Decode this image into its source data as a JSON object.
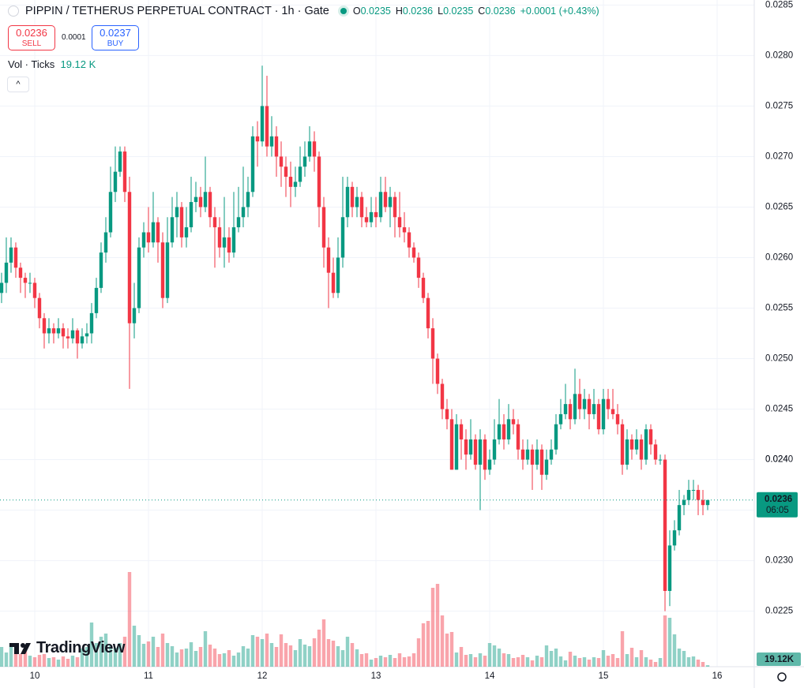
{
  "header": {
    "symbol": "PIPPIN / TETHERUS PERPETUAL CONTRACT · 1h · Gate",
    "ohlc": [
      [
        "O",
        "0.0235"
      ],
      [
        "H",
        "0.0236"
      ],
      [
        "L",
        "0.0235"
      ],
      [
        "C",
        "0.0236"
      ]
    ],
    "change": "+0.0001 (+0.43%)"
  },
  "trade": {
    "sell_price": "0.0236",
    "sell_label": "SELL",
    "spread": "0.0001",
    "buy_price": "0.0237",
    "buy_label": "BUY"
  },
  "indicator": {
    "name": "Vol · Ticks",
    "value": "19.12 K"
  },
  "brand": "TradingView",
  "chart_data": {
    "type": "candlestick",
    "up_color": "#089981",
    "down_color": "#f23645",
    "grid": true,
    "ylim": [
      0.02195,
      0.02855
    ],
    "yticks": [
      0.0225,
      {
        "value": 0.023,
        "label": "0.0230"
      },
      0.0235,
      0.024,
      {
        "value": 0.024,
        "label": "0.0240"
      },
      0.0245,
      {
        "value": 0.025,
        "label": "0.0250"
      },
      0.0255,
      {
        "value": 0.026,
        "label": "0.0260"
      },
      0.0265,
      {
        "value": 0.027,
        "label": "0.0270"
      },
      0.0275,
      {
        "value": 0.028,
        "label": "0.0280"
      },
      0.0285
    ],
    "xlim": [
      -0.33,
      158.83
    ],
    "xticks": [
      {
        "value": 7,
        "label": "10"
      },
      {
        "value": 31,
        "label": "11"
      },
      {
        "value": 55,
        "label": "12"
      },
      {
        "value": 79,
        "label": "13"
      },
      {
        "value": 103,
        "label": "14"
      },
      {
        "value": 127,
        "label": "15"
      },
      {
        "value": 151,
        "label": "16"
      }
    ],
    "last_price": 0.0236,
    "countdown": "06:05",
    "volume_label": "19.12K",
    "volume_ylim": [
      0,
      1500
    ],
    "open": [
      0.02565,
      0.02575,
      0.02595,
      0.0261,
      0.0259,
      0.0258,
      0.02575,
      0.02575,
      0.0256,
      0.0254,
      0.02525,
      0.0253,
      0.02525,
      0.0253,
      0.02522,
      0.0252,
      0.02528,
      0.02515,
      0.02522,
      0.02525,
      0.02545,
      0.0257,
      0.02605,
      0.02625,
      0.02665,
      0.02685,
      0.02705,
      0.02665,
      0.02535,
      0.0255,
      0.0261,
      0.02625,
      0.02615,
      0.02635,
      0.02615,
      0.0256,
      0.02615,
      0.0264,
      0.0265,
      0.0262,
      0.0263,
      0.02655,
      0.0266,
      0.0265,
      0.02665,
      0.0264,
      0.0263,
      0.0261,
      0.0262,
      0.02605,
      0.0263,
      0.0264,
      0.0265,
      0.02665,
      0.0272,
      0.02715,
      0.0275,
      0.0271,
      0.0272,
      0.027,
      0.0269,
      0.0268,
      0.0267,
      0.02675,
      0.0269,
      0.027,
      0.02715,
      0.027,
      0.0265,
      0.0261,
      0.02585,
      0.02565,
      0.026,
      0.0264,
      0.0267,
      0.0265,
      0.0266,
      0.0264,
      0.02635,
      0.02645,
      0.0264,
      0.02665,
      0.0265,
      0.0266,
      0.0264,
      0.0263,
      0.02625,
      0.0261,
      0.026,
      0.0258,
      0.0256,
      0.0253,
      0.025,
      0.02475,
      0.0245,
      0.0244,
      0.0239,
      0.02435,
      0.0242,
      0.02405,
      0.0242,
      0.02395,
      0.0242,
      0.0239,
      0.024,
      0.0242,
      0.02435,
      0.0242,
      0.0244,
      0.02435,
      0.0241,
      0.024,
      0.0241,
      0.02395,
      0.0241,
      0.02385,
      0.024,
      0.0241,
      0.02435,
      0.02445,
      0.02455,
      0.0244,
      0.02465,
      0.0245,
      0.0246,
      0.02445,
      0.02455,
      0.0243,
      0.0246,
      0.0245,
      0.02445,
      0.02435,
      0.02395,
      0.0242,
      0.0241,
      0.0242,
      0.024,
      0.0243,
      0.02415,
      0.024,
      0.024,
      0.0227,
      0.02315,
      0.0233,
      0.02355,
      0.0236,
      0.0237,
      0.0237,
      0.0236,
      0.02355
    ],
    "high": [
      0.02585,
      0.0262,
      0.0262,
      0.02615,
      0.02595,
      0.02585,
      0.02585,
      0.0258,
      0.02565,
      0.02545,
      0.0254,
      0.02535,
      0.0254,
      0.02535,
      0.0253,
      0.0254,
      0.0253,
      0.0253,
      0.02535,
      0.02555,
      0.0258,
      0.02615,
      0.0264,
      0.0269,
      0.0271,
      0.0271,
      0.0271,
      0.0268,
      0.02575,
      0.0262,
      0.02635,
      0.0265,
      0.02665,
      0.0264,
      0.02625,
      0.0264,
      0.0266,
      0.02665,
      0.02655,
      0.0265,
      0.0268,
      0.02675,
      0.0267,
      0.027,
      0.0267,
      0.0265,
      0.0264,
      0.0266,
      0.0263,
      0.02665,
      0.0267,
      0.0269,
      0.0268,
      0.0273,
      0.02735,
      0.0279,
      0.0278,
      0.0274,
      0.0273,
      0.02715,
      0.027,
      0.02695,
      0.0269,
      0.0271,
      0.02715,
      0.0273,
      0.02725,
      0.02705,
      0.0266,
      0.0262,
      0.026,
      0.0262,
      0.0268,
      0.0268,
      0.02675,
      0.0267,
      0.02665,
      0.0265,
      0.0266,
      0.0266,
      0.0268,
      0.0268,
      0.0267,
      0.02665,
      0.02665,
      0.02645,
      0.0263,
      0.02615,
      0.02605,
      0.02585,
      0.02565,
      0.0254,
      0.02505,
      0.0248,
      0.0246,
      0.0245,
      0.02445,
      0.0244,
      0.0243,
      0.0244,
      0.02425,
      0.0243,
      0.02425,
      0.0241,
      0.0244,
      0.0246,
      0.02445,
      0.02455,
      0.0245,
      0.0244,
      0.0242,
      0.0242,
      0.02415,
      0.0242,
      0.02415,
      0.0241,
      0.0242,
      0.02445,
      0.0246,
      0.02475,
      0.0246,
      0.0249,
      0.0248,
      0.0247,
      0.02465,
      0.0247,
      0.0246,
      0.0247,
      0.0247,
      0.0247,
      0.02455,
      0.0244,
      0.0243,
      0.02425,
      0.0243,
      0.02425,
      0.02435,
      0.02435,
      0.0242,
      0.02405,
      0.02405,
      0.0233,
      0.0234,
      0.0237,
      0.02365,
      0.0238,
      0.0238,
      0.02375,
      0.0237,
      0.0236
    ],
    "low": [
      0.02555,
      0.02565,
      0.02585,
      0.0258,
      0.02565,
      0.0256,
      0.02565,
      0.0255,
      0.0253,
      0.0251,
      0.02515,
      0.02515,
      0.0252,
      0.0251,
      0.0251,
      0.02515,
      0.025,
      0.0251,
      0.02515,
      0.02515,
      0.0254,
      0.02565,
      0.02595,
      0.0262,
      0.02655,
      0.0268,
      0.02655,
      0.0247,
      0.0252,
      0.02545,
      0.026,
      0.02605,
      0.0261,
      0.02595,
      0.0255,
      0.02555,
      0.0261,
      0.0262,
      0.0261,
      0.0261,
      0.02625,
      0.02645,
      0.0264,
      0.02645,
      0.0263,
      0.0259,
      0.026,
      0.0259,
      0.02595,
      0.026,
      0.02625,
      0.0263,
      0.0264,
      0.0266,
      0.0269,
      0.0271,
      0.027,
      0.027,
      0.0268,
      0.0267,
      0.0266,
      0.0265,
      0.0266,
      0.0267,
      0.0268,
      0.02695,
      0.02685,
      0.0263,
      0.0259,
      0.0255,
      0.0256,
      0.0256,
      0.0259,
      0.0263,
      0.0264,
      0.0264,
      0.0263,
      0.0263,
      0.0263,
      0.0263,
      0.02635,
      0.02645,
      0.0263,
      0.0262,
      0.0262,
      0.02615,
      0.026,
      0.02595,
      0.0257,
      0.02555,
      0.0252,
      0.02475,
      0.02465,
      0.0244,
      0.0243,
      0.0239,
      0.0239,
      0.024,
      0.0239,
      0.024,
      0.0239,
      0.0235,
      0.0238,
      0.02385,
      0.02395,
      0.02415,
      0.0241,
      0.02415,
      0.02425,
      0.024,
      0.0239,
      0.02395,
      0.0237,
      0.0239,
      0.0237,
      0.0238,
      0.02395,
      0.02405,
      0.0243,
      0.0244,
      0.0243,
      0.02435,
      0.0244,
      0.0244,
      0.0243,
      0.0244,
      0.02425,
      0.02425,
      0.0244,
      0.0244,
      0.02425,
      0.02385,
      0.0239,
      0.024,
      0.02405,
      0.0239,
      0.02395,
      0.02405,
      0.02395,
      0.02395,
      0.0225,
      0.02255,
      0.0231,
      0.02325,
      0.02345,
      0.02355,
      0.0236,
      0.02345,
      0.02345,
      0.0235
    ],
    "close": [
      0.02575,
      0.02595,
      0.0261,
      0.0259,
      0.0258,
      0.02575,
      0.02575,
      0.0256,
      0.0254,
      0.02525,
      0.0253,
      0.02525,
      0.0253,
      0.02522,
      0.0252,
      0.02528,
      0.02515,
      0.02522,
      0.02525,
      0.02545,
      0.0257,
      0.02605,
      0.02625,
      0.02665,
      0.02685,
      0.02705,
      0.02665,
      0.02535,
      0.0255,
      0.0261,
      0.02625,
      0.02615,
      0.02635,
      0.02615,
      0.0256,
      0.02615,
      0.0264,
      0.0265,
      0.0262,
      0.0263,
      0.02655,
      0.0266,
      0.0265,
      0.02665,
      0.0264,
      0.0263,
      0.0261,
      0.0262,
      0.02605,
      0.0263,
      0.0264,
      0.0265,
      0.02665,
      0.0272,
      0.02715,
      0.0275,
      0.0271,
      0.0272,
      0.027,
      0.0269,
      0.0268,
      0.0267,
      0.02675,
      0.0269,
      0.027,
      0.02715,
      0.027,
      0.0265,
      0.0261,
      0.02585,
      0.02565,
      0.026,
      0.0264,
      0.0267,
      0.0265,
      0.0266,
      0.0264,
      0.02635,
      0.02645,
      0.0264,
      0.02665,
      0.0265,
      0.0266,
      0.0264,
      0.0263,
      0.02625,
      0.0261,
      0.026,
      0.0258,
      0.0256,
      0.0253,
      0.025,
      0.02475,
      0.0245,
      0.0244,
      0.0239,
      0.02435,
      0.0242,
      0.02405,
      0.0242,
      0.02395,
      0.0242,
      0.0239,
      0.024,
      0.0242,
      0.02435,
      0.0242,
      0.0244,
      0.02435,
      0.0241,
      0.024,
      0.0241,
      0.02395,
      0.0241,
      0.02385,
      0.024,
      0.0241,
      0.02435,
      0.02445,
      0.02455,
      0.0244,
      0.02465,
      0.0245,
      0.0246,
      0.02445,
      0.02455,
      0.0243,
      0.0246,
      0.0245,
      0.02445,
      0.02435,
      0.02395,
      0.0242,
      0.0241,
      0.0242,
      0.024,
      0.0243,
      0.02415,
      0.024,
      0.024,
      0.0227,
      0.02315,
      0.0233,
      0.02355,
      0.0236,
      0.0237,
      0.0237,
      0.0236,
      0.02355,
      0.0236
    ],
    "volume": [
      250,
      180,
      300,
      210,
      160,
      200,
      140,
      120,
      150,
      160,
      110,
      120,
      90,
      130,
      100,
      140,
      120,
      230,
      250,
      560,
      300,
      380,
      420,
      270,
      240,
      300,
      380,
      1200,
      520,
      400,
      290,
      320,
      380,
      250,
      420,
      300,
      260,
      180,
      220,
      230,
      310,
      200,
      250,
      450,
      280,
      230,
      160,
      170,
      210,
      140,
      180,
      260,
      230,
      400,
      380,
      350,
      420,
      300,
      250,
      410,
      300,
      270,
      210,
      350,
      280,
      260,
      360,
      470,
      600,
      350,
      330,
      260,
      210,
      380,
      300,
      220,
      160,
      170,
      90,
      110,
      140,
      120,
      150,
      110,
      170,
      120,
      130,
      170,
      360,
      550,
      580,
      1000,
      1050,
      650,
      420,
      440,
      180,
      250,
      150,
      160,
      120,
      170,
      140,
      300,
      270,
      230,
      170,
      160,
      110,
      120,
      150,
      120,
      80,
      140,
      120,
      270,
      200,
      230,
      130,
      80,
      190,
      140,
      110,
      120,
      90,
      120,
      110,
      210,
      140,
      160,
      110,
      450,
      160,
      240,
      120,
      210,
      120,
      90,
      60,
      110,
      650,
      620,
      410,
      230,
      200,
      120,
      130,
      90,
      60,
      19.12
    ]
  }
}
